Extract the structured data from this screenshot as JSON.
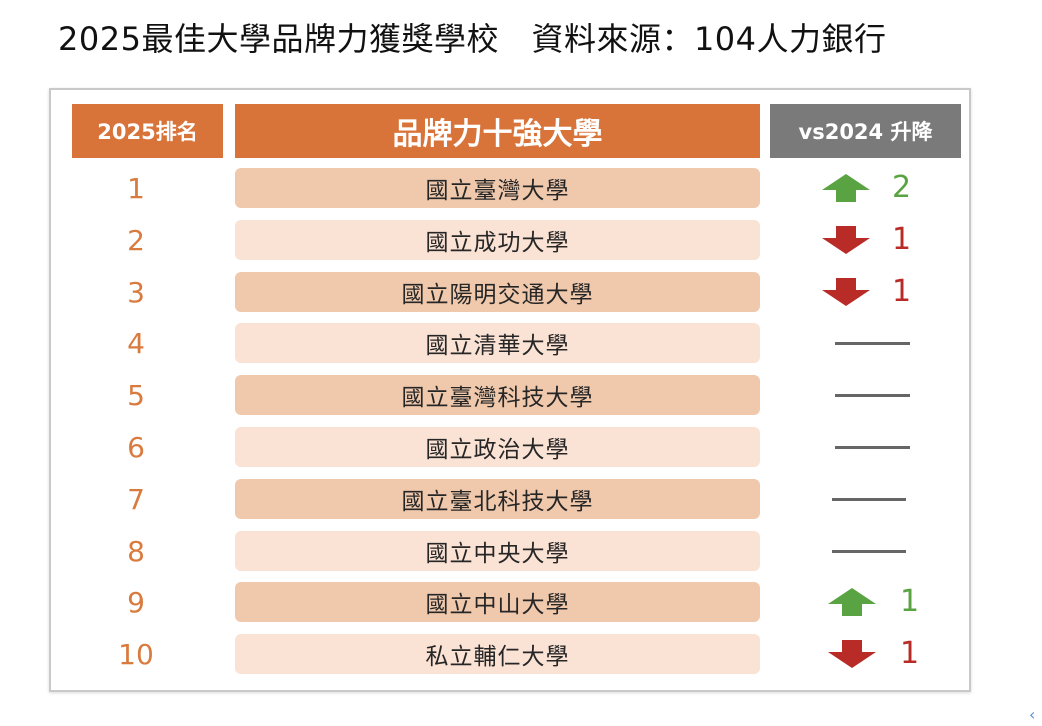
{
  "page": {
    "title": "2025最佳大學品牌力獲獎學校　資料來源：104人力銀行",
    "nav_arrow": "‹"
  },
  "headers": {
    "rank": "2025排名",
    "name": "品牌力十強大學",
    "change": "vs2024 升降"
  },
  "colors": {
    "header_orange": "#d8743a",
    "header_gray": "#7a7a7a",
    "rank_text": "#d97b3f",
    "row_dark": "#f0c9ad",
    "row_light": "#fae2d4",
    "up_green": "#5aa342",
    "down_red": "#b82b27"
  },
  "chart_data": {
    "type": "table",
    "columns": [
      "2025排名",
      "品牌力十強大學",
      "vs2024 升降"
    ],
    "rows": [
      {
        "rank": "1",
        "school": "國立臺灣大學",
        "direction": "up",
        "change": "2"
      },
      {
        "rank": "2",
        "school": "國立成功大學",
        "direction": "down",
        "change": "1"
      },
      {
        "rank": "3",
        "school": "國立陽明交通大學",
        "direction": "down",
        "change": "1"
      },
      {
        "rank": "4",
        "school": "國立清華大學",
        "direction": "same",
        "change": ""
      },
      {
        "rank": "5",
        "school": "國立臺灣科技大學",
        "direction": "same",
        "change": ""
      },
      {
        "rank": "6",
        "school": "國立政治大學",
        "direction": "same",
        "change": ""
      },
      {
        "rank": "7",
        "school": "國立臺北科技大學",
        "direction": "same",
        "change": ""
      },
      {
        "rank": "8",
        "school": "國立中央大學",
        "direction": "same",
        "change": ""
      },
      {
        "rank": "9",
        "school": "國立中山大學",
        "direction": "up",
        "change": "1"
      },
      {
        "rank": "10",
        "school": "私立輔仁大學",
        "direction": "down",
        "change": "1"
      }
    ]
  }
}
